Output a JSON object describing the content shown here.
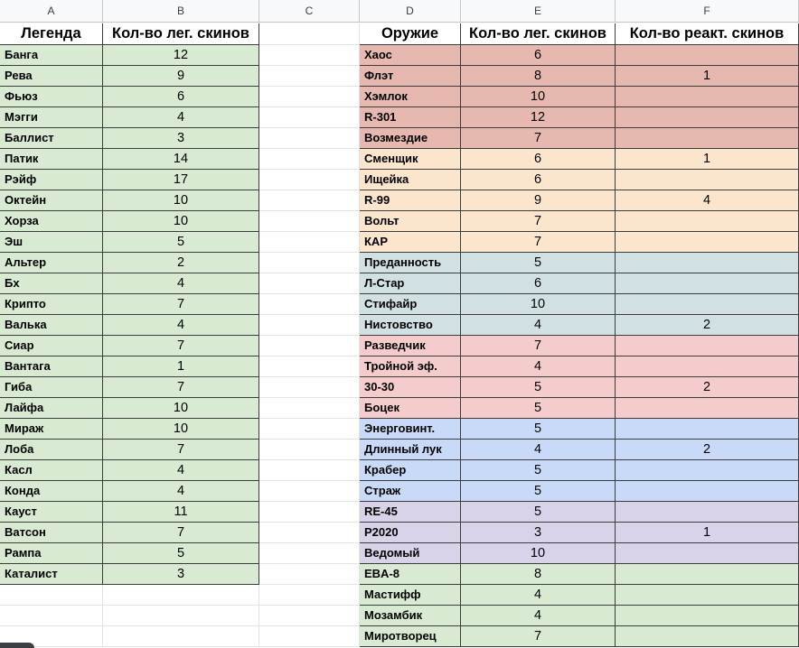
{
  "columns": [
    "A",
    "B",
    "C",
    "D",
    "E",
    "F"
  ],
  "left_table": {
    "header": [
      "Легенда",
      "Кол-во лег. скинов"
    ],
    "row_color": "#d9ead3",
    "rows": [
      [
        "Банга",
        "12"
      ],
      [
        "Рева",
        "9"
      ],
      [
        "Фьюз",
        "6"
      ],
      [
        "Мэгги",
        "4"
      ],
      [
        "Баллист",
        "3"
      ],
      [
        "Патик",
        "14"
      ],
      [
        "Рэйф",
        "17"
      ],
      [
        "Октейн",
        "10"
      ],
      [
        "Хорза",
        "10"
      ],
      [
        "Эш",
        "5"
      ],
      [
        "Альтер",
        "2"
      ],
      [
        "Бх",
        "4"
      ],
      [
        "Крипто",
        "7"
      ],
      [
        "Валька",
        "4"
      ],
      [
        "Сиар",
        "7"
      ],
      [
        "Вантага",
        "1"
      ],
      [
        "Гиба",
        "7"
      ],
      [
        "Лайфа",
        "10"
      ],
      [
        "Мираж",
        "10"
      ],
      [
        "Лоба",
        "7"
      ],
      [
        "Касл",
        "4"
      ],
      [
        "Конда",
        "4"
      ],
      [
        "Кауст",
        "11"
      ],
      [
        "Ватсон",
        "7"
      ],
      [
        "Рампа",
        "5"
      ],
      [
        "Каталист",
        "3"
      ]
    ]
  },
  "right_table": {
    "header": [
      "Оружие",
      "Кол-во лег. скинов",
      "Кол-во реакт. скинов"
    ],
    "group_colors": {
      "red": "#e6b8af",
      "orange": "#fce5cd",
      "teal": "#d0e0e3",
      "pink": "#f4cccc",
      "blue": "#c9daf8",
      "purple": "#d9d2e9",
      "green": "#d9ead3"
    },
    "rows": [
      {
        "name": "Хаос",
        "legendary": "6",
        "reactive": "",
        "group": "red"
      },
      {
        "name": "Флэт",
        "legendary": "8",
        "reactive": "1",
        "group": "red"
      },
      {
        "name": "Хэмлок",
        "legendary": "10",
        "reactive": "",
        "group": "red"
      },
      {
        "name": "R-301",
        "legendary": "12",
        "reactive": "",
        "group": "red"
      },
      {
        "name": "Возмездие",
        "legendary": "7",
        "reactive": "",
        "group": "red"
      },
      {
        "name": "Сменщик",
        "legendary": "6",
        "reactive": "1",
        "group": "orange"
      },
      {
        "name": "Ищейка",
        "legendary": "6",
        "reactive": "",
        "group": "orange"
      },
      {
        "name": "R-99",
        "legendary": "9",
        "reactive": "4",
        "group": "orange"
      },
      {
        "name": "Вольт",
        "legendary": "7",
        "reactive": "",
        "group": "orange"
      },
      {
        "name": "КАР",
        "legendary": "7",
        "reactive": "",
        "group": "orange"
      },
      {
        "name": "Преданность",
        "legendary": "5",
        "reactive": "",
        "group": "teal"
      },
      {
        "name": "Л-Стар",
        "legendary": "6",
        "reactive": "",
        "group": "teal"
      },
      {
        "name": "Стифайр",
        "legendary": "10",
        "reactive": "",
        "group": "teal"
      },
      {
        "name": "Нистовство",
        "legendary": "4",
        "reactive": "2",
        "group": "teal"
      },
      {
        "name": "Разведчик",
        "legendary": "7",
        "reactive": "",
        "group": "pink"
      },
      {
        "name": "Тройной эф.",
        "legendary": "4",
        "reactive": "",
        "group": "pink"
      },
      {
        "name": "30-30",
        "legendary": "5",
        "reactive": "2",
        "group": "pink"
      },
      {
        "name": "Боцек",
        "legendary": "5",
        "reactive": "",
        "group": "pink"
      },
      {
        "name": "Энерговинт.",
        "legendary": "5",
        "reactive": "",
        "group": "blue"
      },
      {
        "name": "Длинный лук",
        "legendary": "4",
        "reactive": "2",
        "group": "blue"
      },
      {
        "name": "Крабер",
        "legendary": "5",
        "reactive": "",
        "group": "blue"
      },
      {
        "name": "Страж",
        "legendary": "5",
        "reactive": "",
        "group": "blue"
      },
      {
        "name": "RE-45",
        "legendary": "5",
        "reactive": "",
        "group": "purple"
      },
      {
        "name": "P2020",
        "legendary": "3",
        "reactive": "1",
        "group": "purple"
      },
      {
        "name": "Ведомый",
        "legendary": "10",
        "reactive": "",
        "group": "purple"
      },
      {
        "name": "EBA-8",
        "legendary": "8",
        "reactive": "",
        "group": "green"
      },
      {
        "name": "Мастифф",
        "legendary": "4",
        "reactive": "",
        "group": "green"
      },
      {
        "name": "Мозамбик",
        "legendary": "4",
        "reactive": "",
        "group": "green"
      },
      {
        "name": "Миротворец",
        "legendary": "7",
        "reactive": "",
        "group": "green"
      }
    ]
  }
}
